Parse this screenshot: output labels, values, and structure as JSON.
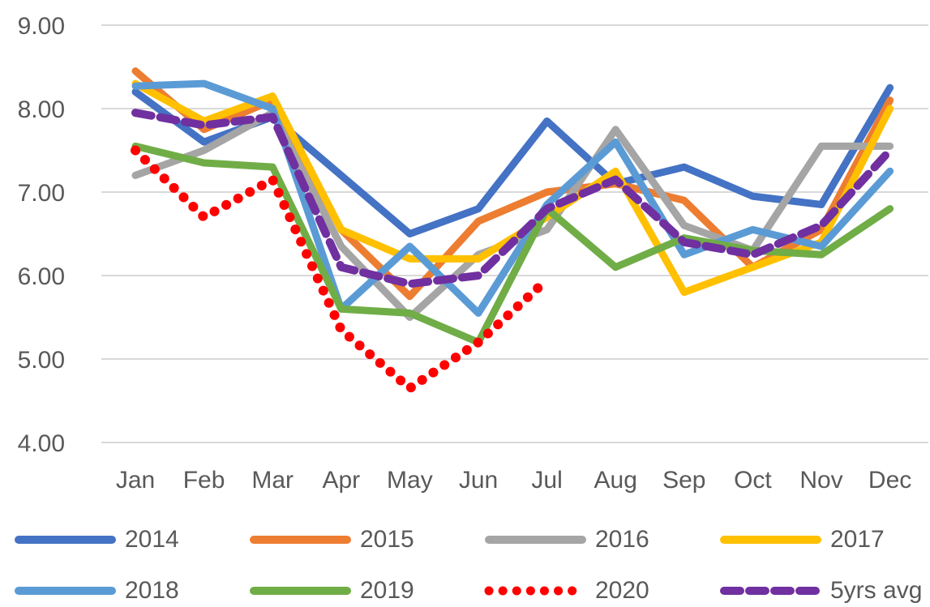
{
  "chart": {
    "background": "#FFFFFF",
    "text_color": "#595959",
    "gridline_color": "#D9D9D9"
  },
  "chart_data": {
    "type": "line",
    "title": "",
    "xlabel": "",
    "ylabel": "",
    "categories": [
      "Jan",
      "Feb",
      "Mar",
      "Apr",
      "May",
      "Jun",
      "Jul",
      "Aug",
      "Sep",
      "Oct",
      "Nov",
      "Dec"
    ],
    "ylim": [
      4,
      9
    ],
    "y_ticks": [
      "9.00",
      "8.00",
      "7.00",
      "6.00",
      "5.00",
      "4.00"
    ],
    "y_tick_values": [
      9,
      8,
      7,
      6,
      5,
      4
    ],
    "grid": "horizontal",
    "legend_position": "bottom",
    "series": [
      {
        "name": "2014",
        "color": "#4472C4",
        "style": "solid",
        "values": [
          8.2,
          7.6,
          7.9,
          7.2,
          6.5,
          6.8,
          7.85,
          7.1,
          7.3,
          6.95,
          6.85,
          8.25
        ]
      },
      {
        "name": "2015",
        "color": "#ED7D31",
        "style": "solid",
        "values": [
          8.45,
          7.75,
          8.1,
          6.55,
          5.75,
          6.65,
          7.0,
          7.1,
          6.9,
          6.1,
          6.55,
          8.1
        ]
      },
      {
        "name": "2016",
        "color": "#A5A5A5",
        "style": "solid",
        "values": [
          7.2,
          7.5,
          7.95,
          6.35,
          5.5,
          6.25,
          6.55,
          7.75,
          6.6,
          6.3,
          7.55,
          7.55
        ]
      },
      {
        "name": "2017",
        "color": "#FFC000",
        "style": "solid",
        "values": [
          8.3,
          7.85,
          8.15,
          6.55,
          6.2,
          6.2,
          6.7,
          7.25,
          5.8,
          6.1,
          6.4,
          8.0
        ]
      },
      {
        "name": "2018",
        "color": "#5B9BD5",
        "style": "solid",
        "values": [
          8.27,
          8.3,
          8.0,
          5.6,
          6.35,
          5.55,
          6.85,
          7.6,
          6.25,
          6.55,
          6.35,
          7.25
        ]
      },
      {
        "name": "2019",
        "color": "#70AD47",
        "style": "solid",
        "values": [
          7.55,
          7.35,
          7.3,
          5.6,
          5.55,
          5.2,
          6.8,
          6.1,
          6.45,
          6.3,
          6.25,
          6.8
        ]
      },
      {
        "name": "2020",
        "color": "#FF0000",
        "style": "dotted",
        "values": [
          7.5,
          6.7,
          7.15,
          5.35,
          4.65,
          5.2,
          5.95
        ]
      },
      {
        "name": "5yrs avg",
        "color": "#7030A0",
        "style": "dashed",
        "values": [
          7.95,
          7.8,
          7.9,
          6.1,
          5.9,
          6.0,
          6.8,
          7.15,
          6.4,
          6.25,
          6.6,
          7.5
        ]
      }
    ]
  }
}
